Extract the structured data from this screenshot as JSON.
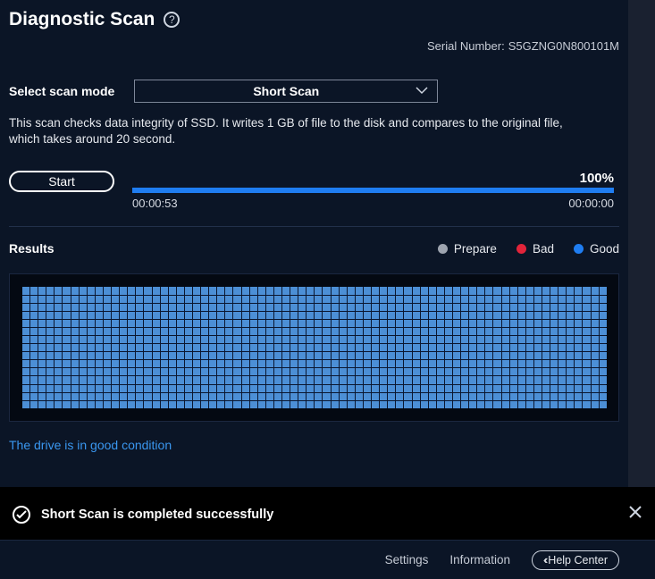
{
  "colors": {
    "bg_main": "#0b1526",
    "bg_gutter": "#1a2130",
    "bg_panel": "#040912",
    "bg_notice": "#000000",
    "text_primary": "#ffffff",
    "text_secondary": "#e6e9ee",
    "text_muted": "#c7ccd6",
    "accent_link": "#3a97f0",
    "progress_fill": "#1f7df1",
    "progress_track": "#1e2a3d",
    "divider": "#22304a",
    "cell_good": "#4c8fd6",
    "cell_gap": "#0b1730",
    "legend_prepare": "#9ea4af",
    "legend_bad": "#e2243a",
    "legend_good": "#1f7df1",
    "select_border": "#7e8799"
  },
  "header": {
    "title": "Diagnostic Scan",
    "serial_label": "Serial Number:",
    "serial_value": "S5GZNG0N800101M"
  },
  "mode": {
    "label": "Select scan mode",
    "selected": "Short Scan"
  },
  "description": "This scan checks data integrity of SSD. It writes 1 GB of file to the disk and compares to the original file, which takes around 20 second.",
  "action": {
    "start_label": "Start"
  },
  "progress": {
    "percent_label": "100%",
    "percent_value": 100,
    "elapsed": "00:00:53",
    "remaining": "00:00:00"
  },
  "results": {
    "label": "Results",
    "legend": [
      {
        "name": "Prepare",
        "color": "#9ea4af"
      },
      {
        "name": "Bad",
        "color": "#e2243a"
      },
      {
        "name": "Good",
        "color": "#1f7df1"
      }
    ],
    "grid": {
      "cols": 72,
      "rows": 15,
      "cell_color": "#4c8fd6"
    },
    "condition_text": "The drive is in good condition",
    "condition_color": "#3a97f0"
  },
  "notice": {
    "text": "Short Scan is completed successfully"
  },
  "footer": {
    "settings": "Settings",
    "information": "Information",
    "help_center": "Help Center"
  }
}
